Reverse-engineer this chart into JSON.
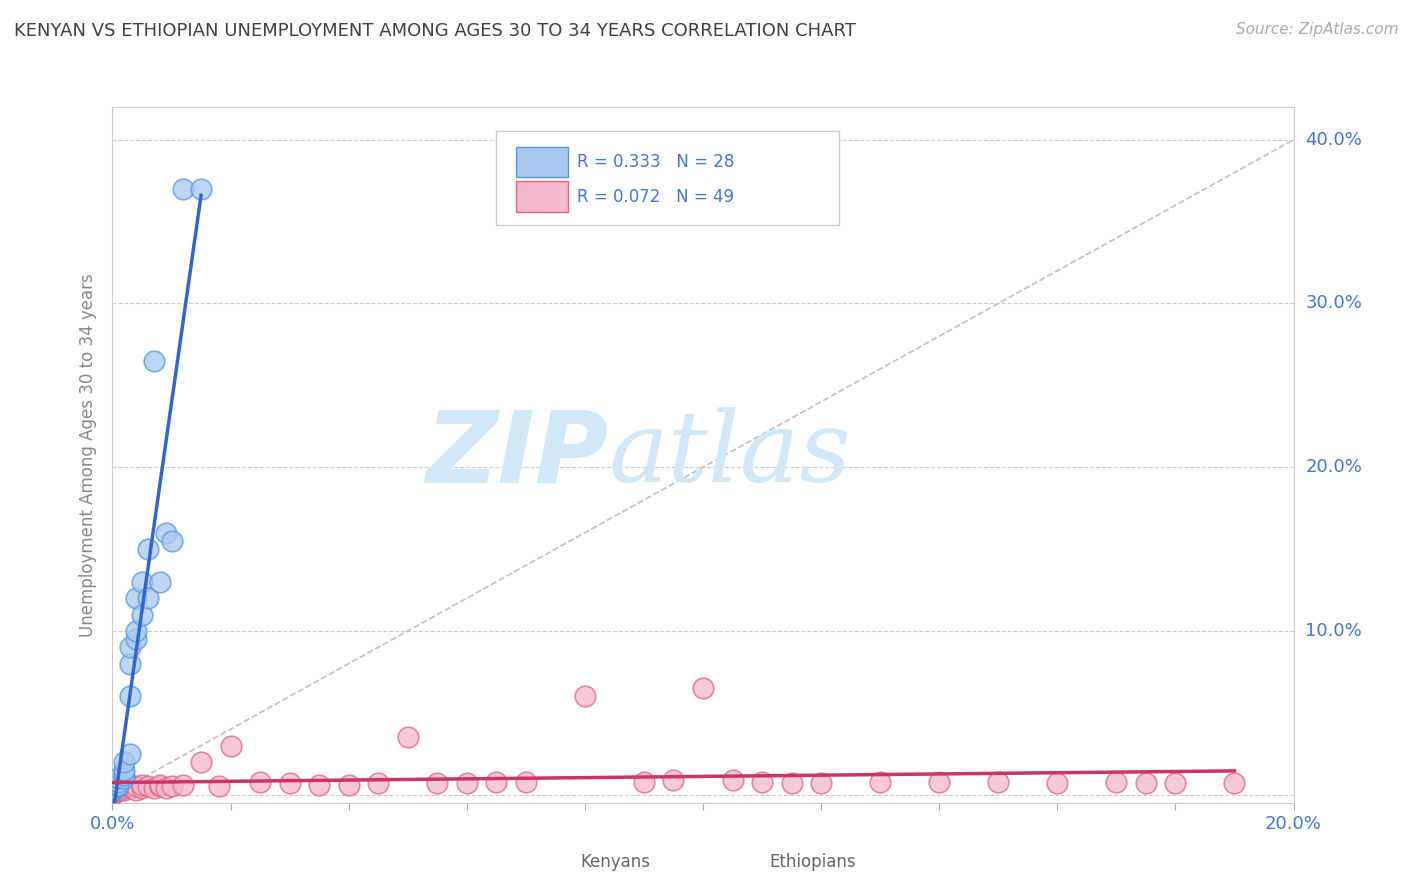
{
  "title": "KENYAN VS ETHIOPIAN UNEMPLOYMENT AMONG AGES 30 TO 34 YEARS CORRELATION CHART",
  "source": "Source: ZipAtlas.com",
  "ylabel_label": "Unemployment Among Ages 30 to 34 years",
  "xlim": [
    0.0,
    0.2
  ],
  "ylim": [
    -0.005,
    0.42
  ],
  "yticks": [
    0.0,
    0.1,
    0.2,
    0.3,
    0.4
  ],
  "ytick_labels": [
    "",
    "10.0%",
    "20.0%",
    "30.0%",
    "40.0%"
  ],
  "kenyan_R": 0.333,
  "kenyan_N": 28,
  "ethiopian_R": 0.072,
  "ethiopian_N": 49,
  "kenyan_color": "#a8c8f0",
  "kenyan_edge_color": "#5599dd",
  "kenyan_line_color": "#3366cc",
  "ethiopian_color": "#f5b8cc",
  "ethiopian_edge_color": "#dd6688",
  "ethiopian_line_color": "#cc3366",
  "ref_line_color": "#c0c0c0",
  "background_color": "#ffffff",
  "grid_color": "#cccccc",
  "watermark_color": "#d0e8f8",
  "title_color": "#404040",
  "axis_label_color": "#4477cc",
  "kenyan_x": [
    0.0,
    0.0,
    0.0,
    0.001,
    0.001,
    0.001,
    0.001,
    0.002,
    0.002,
    0.002,
    0.002,
    0.003,
    0.003,
    0.003,
    0.003,
    0.004,
    0.004,
    0.004,
    0.005,
    0.005,
    0.006,
    0.006,
    0.007,
    0.008,
    0.009,
    0.01,
    0.012,
    0.015
  ],
  "kenyan_y": [
    0.002,
    0.003,
    0.004,
    0.005,
    0.006,
    0.008,
    0.01,
    0.01,
    0.012,
    0.015,
    0.02,
    0.025,
    0.06,
    0.08,
    0.09,
    0.095,
    0.1,
    0.12,
    0.11,
    0.13,
    0.12,
    0.15,
    0.265,
    0.13,
    0.16,
    0.155,
    0.37,
    0.37
  ],
  "ethiopian_x": [
    0.0,
    0.0,
    0.0,
    0.001,
    0.001,
    0.002,
    0.002,
    0.003,
    0.003,
    0.004,
    0.004,
    0.005,
    0.005,
    0.006,
    0.007,
    0.008,
    0.008,
    0.009,
    0.01,
    0.012,
    0.015,
    0.018,
    0.02,
    0.025,
    0.03,
    0.035,
    0.04,
    0.045,
    0.05,
    0.055,
    0.06,
    0.065,
    0.07,
    0.08,
    0.09,
    0.095,
    0.1,
    0.105,
    0.11,
    0.115,
    0.12,
    0.13,
    0.14,
    0.15,
    0.16,
    0.17,
    0.175,
    0.18,
    0.19
  ],
  "ethiopian_y": [
    0.0,
    0.001,
    0.002,
    0.002,
    0.003,
    0.003,
    0.004,
    0.004,
    0.005,
    0.003,
    0.005,
    0.004,
    0.006,
    0.005,
    0.004,
    0.005,
    0.006,
    0.004,
    0.005,
    0.006,
    0.02,
    0.005,
    0.03,
    0.008,
    0.007,
    0.006,
    0.006,
    0.007,
    0.035,
    0.007,
    0.007,
    0.008,
    0.008,
    0.06,
    0.008,
    0.009,
    0.065,
    0.009,
    0.008,
    0.007,
    0.007,
    0.008,
    0.008,
    0.008,
    0.007,
    0.008,
    0.007,
    0.007,
    0.007
  ]
}
